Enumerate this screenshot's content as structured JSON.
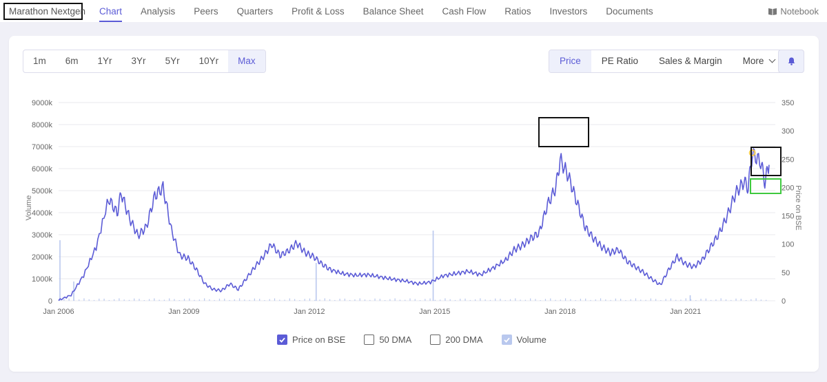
{
  "company": "Marathon Nextgen",
  "tabs": [
    "Chart",
    "Analysis",
    "Peers",
    "Quarters",
    "Profit & Loss",
    "Balance Sheet",
    "Cash Flow",
    "Ratios",
    "Investors",
    "Documents"
  ],
  "notebook": "Notebook",
  "ranges": [
    "1m",
    "6m",
    "1Yr",
    "3Yr",
    "5Yr",
    "10Yr",
    "Max"
  ],
  "active_range": "Max",
  "metrics": [
    "Price",
    "PE Ratio",
    "Sales & Margin",
    "More"
  ],
  "active_metric": "Price",
  "legend": [
    {
      "label": "Price on BSE",
      "checked": true
    },
    {
      "label": "50 DMA",
      "checked": false
    },
    {
      "label": "200 DMA",
      "checked": false
    },
    {
      "label": "Volume",
      "checked": true
    }
  ],
  "colors": {
    "accent": "#5b5bd6",
    "price_line": "#5b5bd6",
    "volume": "#b9c8ee",
    "grid": "#e8e8ee",
    "highlight_black": "#111111",
    "highlight_green": "#3ec93e",
    "peak_marker": "#f2c94c"
  },
  "chart_data": {
    "type": "line",
    "x_ticks": [
      "Jan 2006",
      "Jan 2009",
      "Jan 2012",
      "Jan 2015",
      "Jan 2018",
      "Jan 2021"
    ],
    "y_left_label": "Volume",
    "y_left_ticks": [
      "0",
      "1000k",
      "2000k",
      "3000k",
      "4000k",
      "5000k",
      "6000k",
      "7000k",
      "8000k",
      "9000k"
    ],
    "y_left_range": [
      0,
      9000
    ],
    "y_right_label": "Price on BSE",
    "y_right_ticks": [
      "0",
      "50",
      "100",
      "150",
      "200",
      "250",
      "300",
      "350"
    ],
    "y_right_range": [
      0,
      350
    ],
    "grid": true,
    "price_series": {
      "name": "Price on BSE",
      "points": [
        [
          2006.0,
          1
        ],
        [
          2006.3,
          10
        ],
        [
          2006.6,
          45
        ],
        [
          2006.9,
          95
        ],
        [
          2007.2,
          180
        ],
        [
          2007.4,
          155
        ],
        [
          2007.5,
          190
        ],
        [
          2007.7,
          145
        ],
        [
          2007.9,
          115
        ],
        [
          2008.1,
          130
        ],
        [
          2008.3,
          185
        ],
        [
          2008.5,
          200
        ],
        [
          2008.7,
          125
        ],
        [
          2008.9,
          80
        ],
        [
          2009.1,
          75
        ],
        [
          2009.3,
          55
        ],
        [
          2009.5,
          30
        ],
        [
          2009.7,
          20
        ],
        [
          2009.9,
          18
        ],
        [
          2010.1,
          30
        ],
        [
          2010.3,
          20
        ],
        [
          2010.5,
          40
        ],
        [
          2010.7,
          60
        ],
        [
          2010.9,
          78
        ],
        [
          2011.1,
          100
        ],
        [
          2011.3,
          80
        ],
        [
          2011.5,
          88
        ],
        [
          2011.7,
          102
        ],
        [
          2011.9,
          85
        ],
        [
          2012.1,
          78
        ],
        [
          2012.3,
          65
        ],
        [
          2012.5,
          55
        ],
        [
          2012.8,
          48
        ],
        [
          2013.1,
          45
        ],
        [
          2013.4,
          46
        ],
        [
          2013.7,
          42
        ],
        [
          2014.0,
          38
        ],
        [
          2014.3,
          35
        ],
        [
          2014.6,
          30
        ],
        [
          2014.9,
          33
        ],
        [
          2015.2,
          44
        ],
        [
          2015.5,
          48
        ],
        [
          2015.8,
          52
        ],
        [
          2016.1,
          46
        ],
        [
          2016.4,
          58
        ],
        [
          2016.7,
          72
        ],
        [
          2016.9,
          90
        ],
        [
          2017.1,
          98
        ],
        [
          2017.3,
          110
        ],
        [
          2017.5,
          120
        ],
        [
          2017.7,
          170
        ],
        [
          2017.9,
          200
        ],
        [
          2018.0,
          250
        ],
        [
          2018.2,
          220
        ],
        [
          2018.4,
          175
        ],
        [
          2018.6,
          130
        ],
        [
          2018.8,
          110
        ],
        [
          2019.0,
          95
        ],
        [
          2019.2,
          85
        ],
        [
          2019.4,
          90
        ],
        [
          2019.6,
          70
        ],
        [
          2019.8,
          60
        ],
        [
          2020.0,
          50
        ],
        [
          2020.2,
          38
        ],
        [
          2020.4,
          28
        ],
        [
          2020.6,
          55
        ],
        [
          2020.8,
          78
        ],
        [
          2021.0,
          65
        ],
        [
          2021.2,
          60
        ],
        [
          2021.4,
          72
        ],
        [
          2021.6,
          95
        ],
        [
          2021.8,
          118
        ],
        [
          2022.0,
          150
        ],
        [
          2022.2,
          190
        ],
        [
          2022.4,
          210
        ],
        [
          2022.5,
          200
        ],
        [
          2022.6,
          260
        ],
        [
          2022.8,
          245
        ],
        [
          2022.9,
          210
        ],
        [
          2023.0,
          240
        ]
      ]
    },
    "volume_series": {
      "name": "Volume"
    }
  }
}
